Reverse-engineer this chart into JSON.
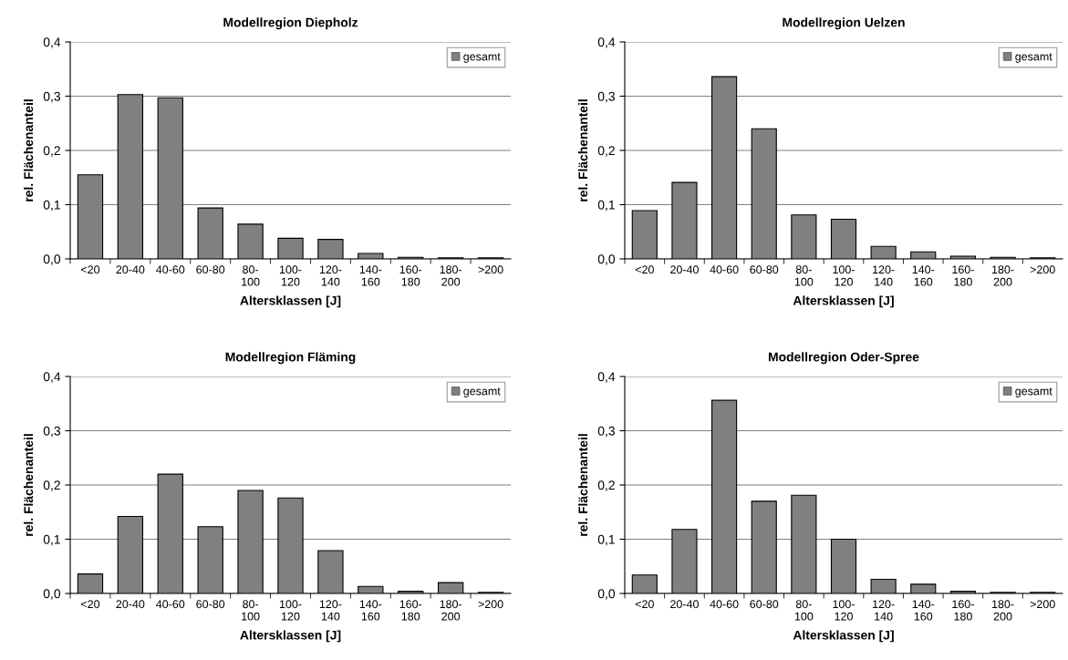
{
  "chart_data": [
    {
      "type": "bar",
      "title": "Modellregion Diepholz",
      "xlabel": "Altersklassen [J]",
      "ylabel": "rel. Flächenanteil",
      "categories": [
        "<20",
        "20-40",
        "40-60",
        "60-80",
        "80-\n100",
        "100-\n120",
        "120-\n140",
        "140-\n160",
        "160-\n180",
        "180-\n200",
        ">200"
      ],
      "series": [
        {
          "name": "gesamt",
          "color": "#808080",
          "values": [
            0.155,
            0.303,
            0.297,
            0.094,
            0.064,
            0.038,
            0.036,
            0.01,
            0.003,
            0.002,
            0.002
          ]
        }
      ],
      "ylim": [
        0,
        0.4
      ],
      "yticks": [
        {
          "value": 0,
          "label": "0,0"
        },
        {
          "value": 0.1,
          "label": "0,1"
        },
        {
          "value": 0.2,
          "label": "0,2"
        },
        {
          "value": 0.3,
          "label": "0,3"
        },
        {
          "value": 0.4,
          "label": "0,4"
        }
      ],
      "grid": "y",
      "legend": "top right"
    },
    {
      "type": "bar",
      "title": "Modellregion Uelzen",
      "xlabel": "Altersklassen [J]",
      "ylabel": "rel. Flächenanteil",
      "categories": [
        "<20",
        "20-40",
        "40-60",
        "60-80",
        "80-\n100",
        "100-\n120",
        "120-\n140",
        "140-\n160",
        "160-\n180",
        "180-\n200",
        ">200"
      ],
      "series": [
        {
          "name": "gesamt",
          "color": "#808080",
          "values": [
            0.089,
            0.141,
            0.336,
            0.24,
            0.081,
            0.073,
            0.023,
            0.013,
            0.005,
            0.003,
            0.002
          ]
        }
      ],
      "ylim": [
        0,
        0.4
      ],
      "yticks": [
        {
          "value": 0,
          "label": "0,0"
        },
        {
          "value": 0.1,
          "label": "0,1"
        },
        {
          "value": 0.2,
          "label": "0,2"
        },
        {
          "value": 0.3,
          "label": "0,3"
        },
        {
          "value": 0.4,
          "label": "0,4"
        }
      ],
      "grid": "y",
      "legend": "top right"
    },
    {
      "type": "bar",
      "title": "Modellregion Fläming",
      "xlabel": "Altersklassen [J]",
      "ylabel": "rel. Flächenanteil",
      "categories": [
        "<20",
        "20-40",
        "40-60",
        "60-80",
        "80-\n100",
        "100-\n120",
        "120-\n140",
        "140-\n160",
        "160-\n180",
        "180-\n200",
        ">200"
      ],
      "series": [
        {
          "name": "gesamt",
          "color": "#808080",
          "values": [
            0.036,
            0.142,
            0.22,
            0.123,
            0.19,
            0.176,
            0.079,
            0.013,
            0.004,
            0.02,
            0.002
          ]
        }
      ],
      "ylim": [
        0,
        0.4
      ],
      "yticks": [
        {
          "value": 0,
          "label": "0,0"
        },
        {
          "value": 0.1,
          "label": "0,1"
        },
        {
          "value": 0.2,
          "label": "0,2"
        },
        {
          "value": 0.3,
          "label": "0,3"
        },
        {
          "value": 0.4,
          "label": "0,4"
        }
      ],
      "grid": "y",
      "legend": "top right"
    },
    {
      "type": "bar",
      "title": "Modellregion Oder-Spree",
      "xlabel": "Altersklassen [J]",
      "ylabel": "rel. Flächenanteil",
      "categories": [
        "<20",
        "20-40",
        "40-60",
        "60-80",
        "80-\n100",
        "100-\n120",
        "120-\n140",
        "140-\n160",
        "160-\n180",
        "180-\n200",
        ">200"
      ],
      "series": [
        {
          "name": "gesamt",
          "color": "#808080",
          "values": [
            0.034,
            0.118,
            0.356,
            0.17,
            0.181,
            0.1,
            0.026,
            0.017,
            0.004,
            0.002,
            0.002
          ]
        }
      ],
      "ylim": [
        0,
        0.4
      ],
      "yticks": [
        {
          "value": 0,
          "label": "0,0"
        },
        {
          "value": 0.1,
          "label": "0,1"
        },
        {
          "value": 0.2,
          "label": "0,2"
        },
        {
          "value": 0.3,
          "label": "0,3"
        },
        {
          "value": 0.4,
          "label": "0,4"
        }
      ],
      "grid": "y",
      "legend": "top right"
    }
  ]
}
